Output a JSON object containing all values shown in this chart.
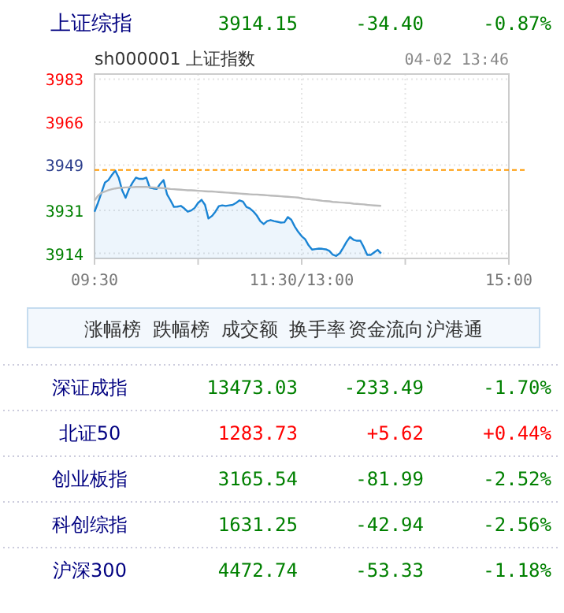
{
  "chart_data": [
    {
      "type": "other",
      "title": "上证综指",
      "annotations": [
        "3914.15",
        "-34.40",
        "-0.87%"
      ]
    },
    {
      "type": "line",
      "title": "sh000001  上证指数",
      "subtitle": "04-02 13:46",
      "ylim": [
        3912,
        3985
      ],
      "categories": [
        "09:30",
        null,
        null,
        null,
        null,
        null,
        null,
        null,
        null,
        null,
        null,
        null,
        null,
        null,
        null,
        null,
        null,
        null,
        null,
        null,
        null,
        null,
        null,
        null,
        null,
        null,
        null,
        null,
        null,
        null,
        null,
        null,
        null,
        null,
        null,
        null,
        null,
        null,
        null,
        null,
        null,
        null,
        null,
        null,
        null,
        null,
        null,
        null,
        null,
        null,
        null,
        null,
        null,
        null,
        null,
        null,
        null,
        null,
        null,
        null,
        "11:30/13:00",
        null,
        null,
        null,
        null,
        null,
        null,
        null,
        null,
        null,
        null,
        null,
        null,
        null,
        null,
        null,
        null,
        null,
        null,
        null,
        null,
        null,
        null,
        null,
        null,
        null,
        null,
        null,
        null,
        null,
        null,
        null,
        null,
        null,
        null,
        null,
        null,
        null,
        null,
        null,
        null,
        null,
        null,
        null,
        null,
        null,
        null,
        null,
        null,
        null,
        null,
        null,
        null,
        null,
        null,
        null,
        null,
        null,
        null,
        null,
        "15:00"
      ],
      "yticks": [
        3914,
        3931,
        3949,
        3966,
        3983
      ],
      "grid": true,
      "ref_lines": [
        {
          "axis": "y",
          "value": 3947,
          "color": "#ff9900",
          "line_style": "dashed"
        }
      ],
      "series": [
        {
          "type": "area",
          "color": "#1a84d4",
          "values": [
            3930.5,
            3934,
            3938,
            3942,
            3943,
            3945,
            3946.8,
            3944,
            3939,
            3936,
            3939.5,
            3942,
            3944,
            3943.5,
            3943.5,
            3944,
            3940,
            3939.7,
            3939.5,
            3941.5,
            3943,
            3937.4,
            3935,
            3932.4,
            3932.5,
            3932.8,
            3931.8,
            3930.5,
            3931,
            3932,
            3934,
            3935.2,
            3933.2,
            3927.8,
            3928.8,
            3930.5,
            3932.7,
            3933,
            3932.8,
            3933,
            3933.2,
            3934,
            3935,
            3934.5,
            3932.4,
            3931.8,
            3930.6,
            3929,
            3926.8,
            3925.6,
            3926.8,
            3927.2,
            3926.8,
            3926.5,
            3926.2,
            3926.3,
            3928.4,
            3927.3,
            3924.6,
            3922.5,
            3920.8,
            3919.6,
            3917.2,
            3915.5,
            3915.7,
            3915.9,
            3915.8,
            3915.6,
            3915,
            3913.5,
            3913,
            3914,
            3916.2,
            3918.6,
            3920.5,
            3919.4,
            3919,
            3919,
            3916.4,
            3913.4,
            3913.4,
            3914.4,
            3915.4,
            3914,
            null,
            null,
            null,
            null,
            null,
            null,
            null,
            null,
            null,
            null,
            null,
            null,
            null,
            null,
            null,
            null,
            null,
            null,
            null,
            null,
            null,
            null,
            null,
            null,
            null,
            null,
            null,
            null,
            null,
            null,
            null,
            null,
            null,
            null,
            null,
            null,
            null
          ]
        },
        {
          "type": "line",
          "color": "#bbbbbb",
          "values": [
            3934.9,
            3936.8,
            3938,
            3938.5,
            3939,
            3939.4,
            3939.7,
            3939.9,
            3940,
            3940.1,
            3940.2,
            3940.2,
            3940.3,
            3940.3,
            3940.3,
            3940.3,
            3940.2,
            3940.1,
            3940,
            3939.9,
            3939.8,
            3939.7,
            3939.5,
            3939.4,
            3939.3,
            3939.2,
            3939.1,
            3939,
            3939,
            3938.9,
            3938.8,
            3938.7,
            3938.6,
            3938.5,
            3938.5,
            3938.4,
            3938.3,
            3938.2,
            3938.1,
            3938,
            3937.9,
            3937.8,
            3937.7,
            3937.6,
            3937.5,
            3937.4,
            3937.3,
            3937.3,
            3937.2,
            3937.1,
            3937,
            3936.9,
            3936.8,
            3936.7,
            3936.6,
            3936.5,
            3936.4,
            3936.3,
            3936.2,
            3936.1,
            3935.8,
            3935.6,
            3935.5,
            3935.3,
            3935.2,
            3935,
            3934.8,
            3934.7,
            3934.6,
            3934.4,
            3934.3,
            3934.2,
            3934.1,
            3934,
            3933.9,
            3933.7,
            3933.6,
            3933.5,
            3933.4,
            3933.2,
            3933.1,
            3933,
            3932.9,
            3932.8,
            null,
            null,
            null,
            null,
            null,
            null,
            null,
            null,
            null,
            null,
            null,
            null,
            null,
            null,
            null,
            null,
            null,
            null,
            null,
            null,
            null,
            null,
            null,
            null,
            null,
            null,
            null,
            null,
            null,
            null,
            null,
            null,
            null,
            null,
            null,
            null,
            null
          ]
        }
      ]
    },
    {
      "type": "other",
      "annotations": [
        "涨幅榜",
        "跌幅榜",
        "成交额",
        "换手率",
        "资金流向",
        "沪港通"
      ]
    },
    {
      "type": "other",
      "annotations": [
        "深证成指",
        "13473.03",
        "-233.49",
        "-1.70%",
        "北证50",
        "1283.73",
        "+5.62",
        "+0.44%",
        "创业板指",
        "3165.54",
        "-81.99",
        "-2.52%",
        "科创综指",
        "1631.25",
        "-42.94",
        "-2.56%",
        "沪深300",
        "4472.74",
        "-53.33",
        "-1.18%"
      ]
    }
  ]
}
